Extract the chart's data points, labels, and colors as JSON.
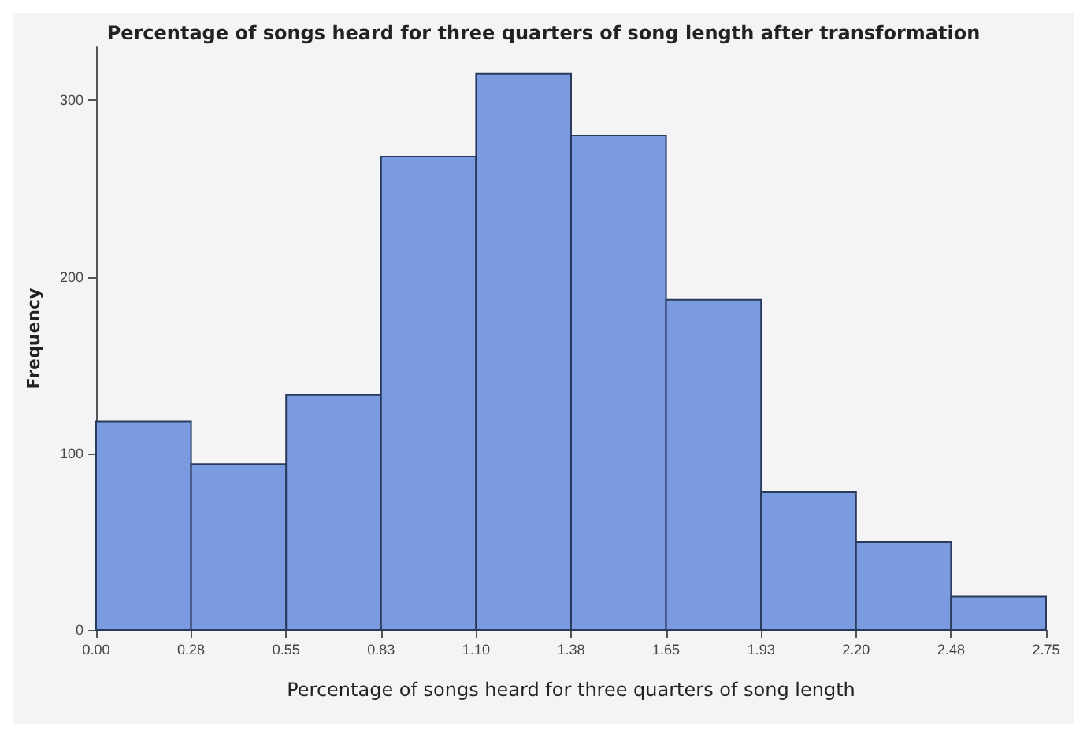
{
  "chart_data": {
    "type": "histogram",
    "title": "Percentage of songs heard for three quarters of song length after transformation",
    "xlabel": "Percentage of songs heard for three quarters of song length",
    "ylabel": "Frequency",
    "bins": [
      0,
      0.275,
      0.55,
      0.825,
      1.1,
      1.375,
      1.65,
      1.925,
      2.2,
      2.475,
      2.75
    ],
    "values": [
      118,
      94,
      133,
      268,
      315,
      280,
      187,
      78,
      50,
      19
    ],
    "color": "#7b9be0",
    "xlim": [
      0,
      2.75
    ],
    "xticks": [
      "0.00",
      {
        "value": 0.275,
        "label": "0.28"
      },
      "0.55",
      {
        "value": 0.825,
        "label": "0.83"
      },
      "1.10",
      {
        "value": 1.375,
        "label": "1.38"
      },
      "1.65",
      {
        "value": 1.925,
        "label": "1.93"
      },
      "2.20",
      {
        "value": 2.475,
        "label": "2.48"
      },
      "2.75"
    ],
    "ylim": [
      0,
      330
    ],
    "yticks": [
      0,
      100,
      200,
      300
    ],
    "grid": false
  }
}
